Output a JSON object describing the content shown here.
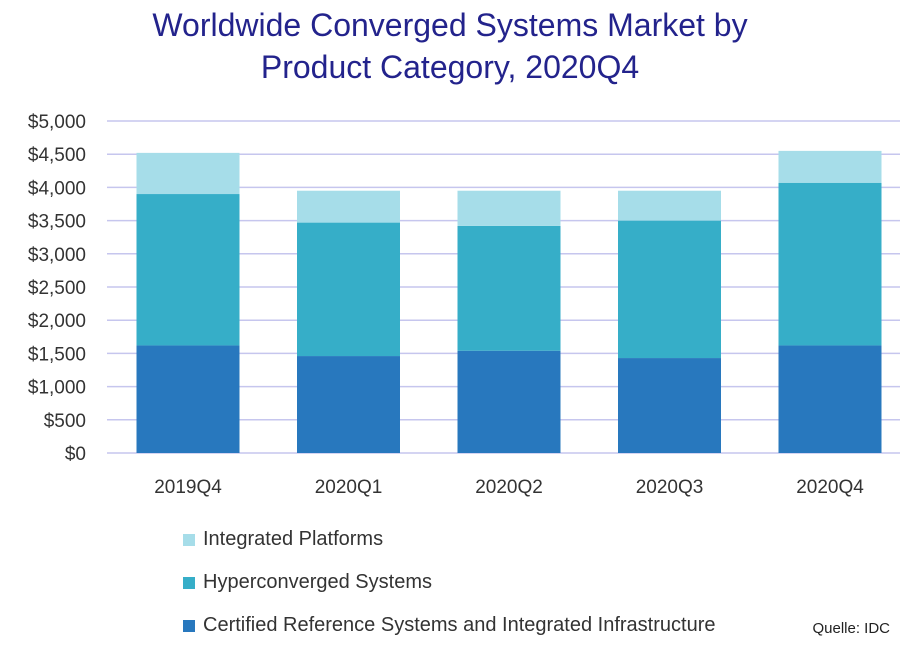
{
  "title_line1": "Worldwide Converged Systems Market by",
  "title_line2": "Product Category, 2020Q4",
  "source": "Quelle: IDC",
  "colors": {
    "integrated_platforms": "#a6dde9",
    "hyperconverged_systems": "#36aec8",
    "certified_reference": "#2878be",
    "grid": "#c6c6ee",
    "title": "#23238c"
  },
  "chart_data": {
    "type": "bar",
    "stacked": true,
    "title": "Worldwide Converged Systems Market by Product Category, 2020Q4",
    "categories": [
      "2019Q4",
      "2020Q1",
      "2020Q2",
      "2020Q3",
      "2020Q4"
    ],
    "series": [
      {
        "name": "Certified Reference Systems and Integrated Infrastructure",
        "values": [
          1620,
          1460,
          1540,
          1430,
          1620
        ]
      },
      {
        "name": "Hyperconverged Systems",
        "values": [
          2280,
          2010,
          1880,
          2070,
          2450
        ]
      },
      {
        "name": "Integrated Platforms",
        "values": [
          620,
          480,
          530,
          450,
          480
        ]
      }
    ],
    "ylim": [
      0,
      5000
    ],
    "yticks": [
      0,
      500,
      1000,
      1500,
      2000,
      2500,
      3000,
      3500,
      4000,
      4500,
      5000
    ],
    "ytick_labels": [
      "$0",
      "$500",
      "$1,000",
      "$1,500",
      "$2,000",
      "$2,500",
      "$3,000",
      "$3,500",
      "$4,000",
      "$4,500",
      "$5,000"
    ],
    "grid": true,
    "legend_placement": "bottom",
    "legend": [
      "Integrated Platforms",
      "Hyperconverged Systems",
      "Certified Reference Systems and Integrated Infrastructure"
    ]
  }
}
